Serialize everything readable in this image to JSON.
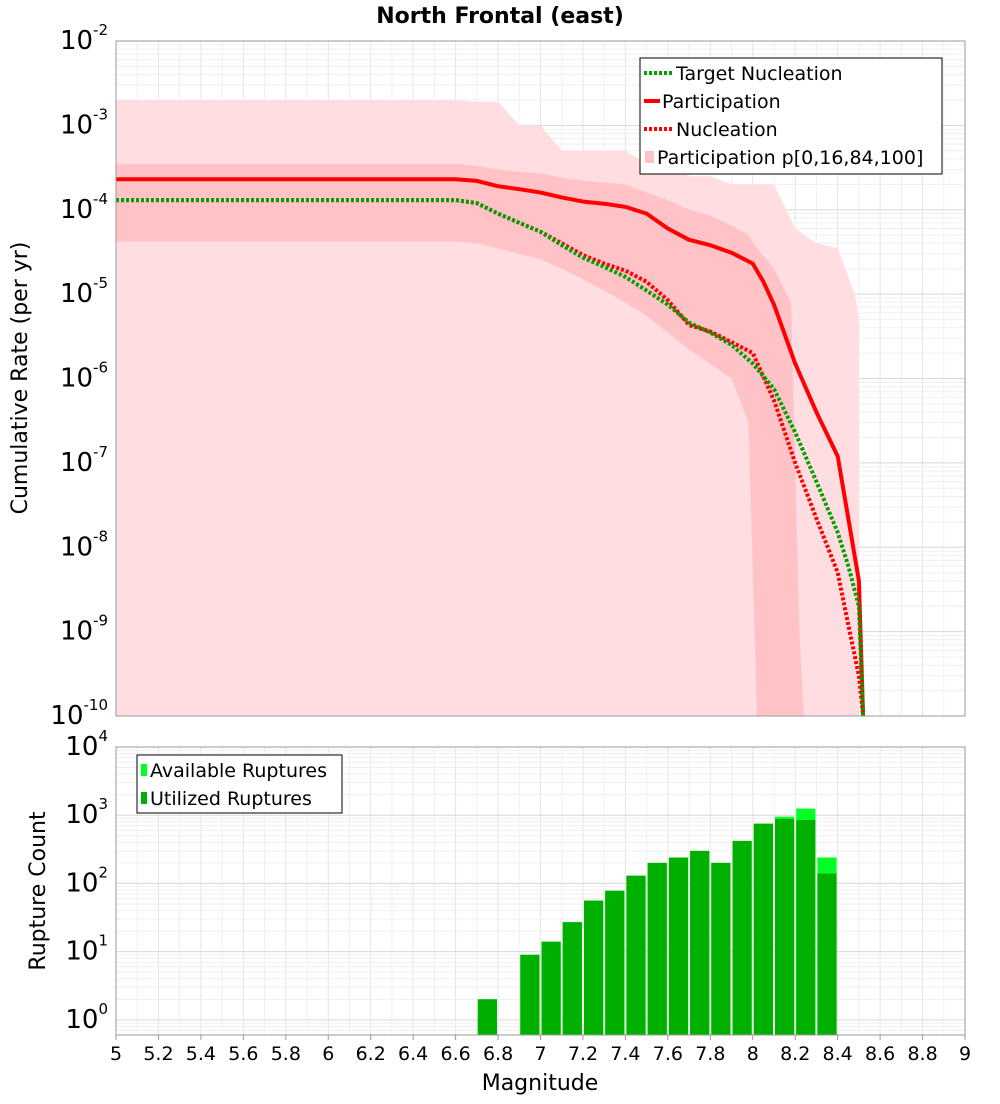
{
  "figure": {
    "title": "North Frontal (east)",
    "xlabel": "Magnitude",
    "x_ticks": [
      5,
      5.2,
      5.4,
      5.6,
      5.8,
      6,
      6.2,
      6.4,
      6.6,
      6.8,
      7,
      7.2,
      7.4,
      7.6,
      7.8,
      8,
      8.2,
      8.4,
      8.6,
      8.8,
      9
    ],
    "x_tick_labels": [
      "5",
      "5.2",
      "5.4",
      "5.6",
      "5.8",
      "6",
      "6.2",
      "6.4",
      "6.6",
      "6.8",
      "7",
      "7.2",
      "7.4",
      "7.6",
      "7.8",
      "8",
      "8.2",
      "8.4",
      "8.6",
      "8.8",
      "9"
    ],
    "xlim": [
      5,
      9
    ]
  },
  "chart_data": [
    {
      "type": "line",
      "name": "rate-panel",
      "ylabel": "Cumulative Rate (per yr)",
      "yscale": "log",
      "ylim": [
        1e-10,
        0.01
      ],
      "y_tick_exponents": [
        "-10",
        "-9",
        "-8",
        "-7",
        "-6",
        "-5",
        "-4",
        "-3",
        "-2"
      ],
      "grid": true,
      "legend_position": "top-right",
      "legend": [
        "Target Nucleation",
        "Participation",
        "Nucleation",
        "Participation p[0,16,84,100]"
      ],
      "colors": {
        "target_nucleation": "#00a000",
        "participation": "#ff0000",
        "nucleation": "#ff0000",
        "band_outer": "#ffdde0",
        "band_inner": "#ffc2c6"
      },
      "series": [
        {
          "name": "Target Nucleation",
          "style": "dotted",
          "x": [
            5,
            6.6,
            6.7,
            6.8,
            6.9,
            7.0,
            7.1,
            7.2,
            7.3,
            7.4,
            7.5,
            7.6,
            7.7,
            7.8,
            7.9,
            8.0,
            8.1,
            8.2,
            8.3,
            8.4,
            8.45,
            8.5,
            8.52
          ],
          "y": [
            0.00013,
            0.00013,
            0.00012,
            9e-05,
            7e-05,
            5.5e-05,
            3.8e-05,
            2.7e-05,
            2.1e-05,
            1.6e-05,
            1.1e-05,
            7.5e-06,
            4.6e-06,
            3.5e-06,
            2.5e-06,
            1.5e-06,
            7.5e-07,
            2.3e-07,
            6e-08,
            1.5e-08,
            6e-09,
            2e-09,
            1e-10
          ]
        },
        {
          "name": "Participation",
          "style": "solid",
          "x": [
            5,
            6.6,
            6.7,
            6.8,
            6.9,
            7.0,
            7.1,
            7.2,
            7.3,
            7.4,
            7.5,
            7.6,
            7.7,
            7.8,
            7.9,
            8.0,
            8.05,
            8.1,
            8.2,
            8.3,
            8.4,
            8.5,
            8.52
          ],
          "y": [
            0.00023,
            0.00023,
            0.00022,
            0.00019,
            0.000175,
            0.00016,
            0.00014,
            0.000125,
            0.000118,
            0.000108,
            9e-05,
            6e-05,
            4.4e-05,
            3.8e-05,
            3.1e-05,
            2.3e-05,
            1.4e-05,
            7.5e-06,
            1.5e-06,
            4e-07,
            1.2e-07,
            4e-09,
            1e-10
          ]
        },
        {
          "name": "Nucleation",
          "style": "dotted",
          "x": [
            5,
            6.6,
            6.7,
            6.8,
            6.9,
            7.0,
            7.1,
            7.2,
            7.3,
            7.4,
            7.5,
            7.6,
            7.7,
            7.8,
            7.9,
            8.0,
            8.1,
            8.2,
            8.3,
            8.4,
            8.45,
            8.5,
            8.52
          ],
          "y": [
            0.00013,
            0.00013,
            0.00012,
            9e-05,
            7e-05,
            5.5e-05,
            4e-05,
            2.9e-05,
            2.3e-05,
            1.9e-05,
            1.4e-05,
            8.5e-06,
            4.3e-06,
            3.6e-06,
            2.7e-06,
            2e-06,
            5.5e-07,
            1e-07,
            2.2e-08,
            5e-09,
            1.2e-09,
            3e-10,
            1e-10
          ]
        }
      ],
      "bands": [
        {
          "name": "p0-100",
          "x": [
            5,
            6.6,
            6.7,
            6.8,
            6.9,
            7.0,
            7.1,
            7.2,
            7.3,
            7.4,
            7.5,
            7.6,
            7.7,
            7.8,
            7.9,
            8.0,
            8.1,
            8.2,
            8.3,
            8.4,
            8.48,
            8.5
          ],
          "upper": [
            0.002,
            0.002,
            0.0019,
            0.0019,
            0.001,
            0.001,
            0.0005,
            0.0005,
            0.0005,
            0.0005,
            0.00035,
            0.00035,
            0.00025,
            0.00025,
            0.0002,
            0.0002,
            0.0002,
            6e-05,
            4e-05,
            3.5e-05,
            1e-05,
            5e-06
          ],
          "lower": [
            1e-10,
            1e-10,
            1e-10,
            1e-10,
            1e-10,
            1e-10,
            1e-10,
            1e-10,
            1e-10,
            1e-10,
            1e-10,
            1e-10,
            1e-10,
            1e-10,
            1e-10,
            1e-10,
            1e-10,
            1e-10,
            1e-10,
            1e-10,
            1e-10,
            1e-10
          ]
        },
        {
          "name": "p16-84",
          "x": [
            5,
            6.6,
            6.7,
            6.8,
            6.9,
            7.0,
            7.1,
            7.2,
            7.3,
            7.4,
            7.5,
            7.6,
            7.7,
            7.8,
            7.9,
            7.98,
            8.02,
            8.1,
            8.18,
            8.22,
            8.24
          ],
          "upper": [
            0.00035,
            0.00035,
            0.00033,
            0.0003,
            0.00028,
            0.00027,
            0.00024,
            0.00022,
            0.00021,
            0.0002,
            0.00016,
            0.00013,
            0.0001,
            8.5e-05,
            6.5e-05,
            5e-05,
            3.5e-05,
            2e-05,
            8e-06,
            1e-09,
            1e-10
          ],
          "lower": [
            4.2e-05,
            4.2e-05,
            4e-05,
            3.5e-05,
            3e-05,
            2.6e-05,
            2e-05,
            1.5e-05,
            1.1e-05,
            8e-06,
            5.5e-06,
            3.5e-06,
            2.2e-06,
            1.5e-06,
            1e-06,
            3e-07,
            1e-10,
            1e-10,
            1e-10,
            1e-10,
            1e-10
          ]
        }
      ]
    },
    {
      "type": "bar",
      "name": "count-panel",
      "ylabel": "Rupture Count",
      "yscale": "log",
      "ylim": [
        0.6,
        10000
      ],
      "y_tick_exponents": [
        "0",
        "1",
        "2",
        "3",
        "4"
      ],
      "grid": true,
      "legend_position": "top-left",
      "legend": [
        "Available Ruptures",
        "Utilized Ruptures"
      ],
      "colors": {
        "available": "#00ff22",
        "utilized": "#00b000"
      },
      "bar_width": 0.1,
      "x": [
        6.75,
        6.95,
        7.05,
        7.15,
        7.25,
        7.35,
        7.45,
        7.55,
        7.65,
        7.75,
        7.85,
        7.95,
        8.05,
        8.15,
        8.25,
        8.35
      ],
      "available": [
        2,
        9,
        14,
        27,
        56,
        78,
        130,
        200,
        240,
        300,
        200,
        420,
        750,
        950,
        1250,
        240
      ],
      "utilized": [
        2,
        9,
        14,
        27,
        56,
        78,
        130,
        200,
        240,
        300,
        200,
        420,
        750,
        880,
        850,
        140
      ]
    }
  ]
}
